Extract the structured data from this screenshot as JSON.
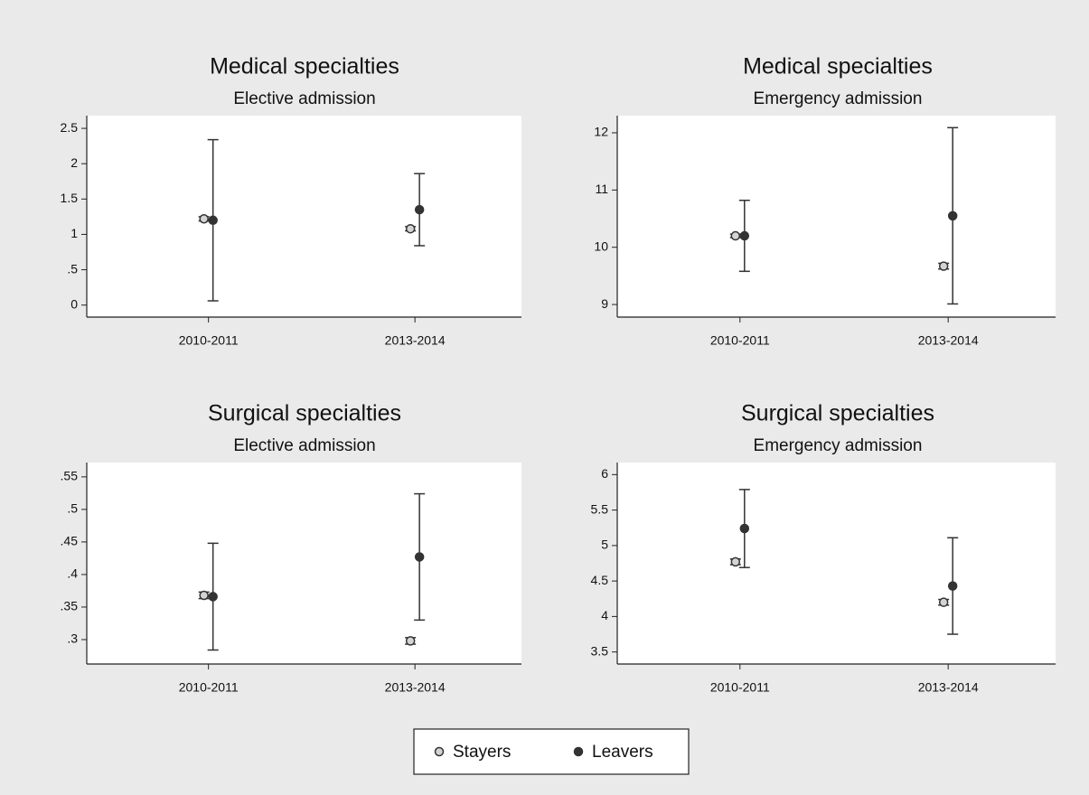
{
  "chart_data": [
    {
      "type": "dot",
      "title": "Medical specialties",
      "subtitle": "Elective admission",
      "categories": [
        "2010-2011",
        "2013-2014"
      ],
      "ylim": [
        -0.17,
        2.68
      ],
      "yticks": [
        0,
        {
          "value": 0.5,
          "label": ".5"
        },
        1,
        1.5,
        2,
        2.5
      ],
      "series": [
        {
          "name": "Stayers",
          "color": "#d4d4d4",
          "values": [
            1.22,
            1.08
          ],
          "errors": [
            0.03,
            0.03
          ]
        },
        {
          "name": "Leavers",
          "color": "#333333",
          "values": [
            1.2,
            1.35
          ],
          "errors": [
            1.14,
            0.51
          ]
        }
      ]
    },
    {
      "type": "dot",
      "title": "Medical specialties",
      "subtitle": "Emergency admission",
      "categories": [
        "2010-2011",
        "2013-2014"
      ],
      "ylim": [
        8.78,
        12.3
      ],
      "yticks": [
        9,
        10,
        11,
        12
      ],
      "series": [
        {
          "name": "Stayers",
          "color": "#d4d4d4",
          "values": [
            10.2,
            9.67
          ],
          "errors": [
            0.03,
            0.05
          ]
        },
        {
          "name": "Leavers",
          "color": "#333333",
          "values": [
            10.2,
            10.55
          ],
          "errors": [
            0.62,
            1.54
          ]
        }
      ]
    },
    {
      "type": "dot",
      "title": "Surgical specialties",
      "subtitle": "Elective admission",
      "categories": [
        "2010-2011",
        "2013-2014"
      ],
      "ylim": [
        0.2625,
        0.572
      ],
      "yticks": [
        {
          "value": 0.3,
          "label": ".3"
        },
        {
          "value": 0.35,
          "label": ".35"
        },
        {
          "value": 0.4,
          "label": ".4"
        },
        {
          "value": 0.45,
          "label": ".45"
        },
        {
          "value": 0.5,
          "label": ".5"
        },
        {
          "value": 0.55,
          "label": ".55"
        }
      ],
      "series": [
        {
          "name": "Stayers",
          "color": "#d4d4d4",
          "values": [
            0.368,
            0.298
          ],
          "errors": [
            0.005,
            0.005
          ]
        },
        {
          "name": "Leavers",
          "color": "#333333",
          "values": [
            0.366,
            0.427
          ],
          "errors": [
            0.082,
            0.097
          ]
        }
      ]
    },
    {
      "type": "dot",
      "title": "Surgical specialties",
      "subtitle": "Emergency admission",
      "categories": [
        "2010-2011",
        "2013-2014"
      ],
      "ylim": [
        3.33,
        6.17
      ],
      "yticks": [
        3.5,
        4,
        4.5,
        5,
        5.5,
        6
      ],
      "series": [
        {
          "name": "Stayers",
          "color": "#d4d4d4",
          "values": [
            4.77,
            4.2
          ],
          "errors": [
            0.04,
            0.04
          ]
        },
        {
          "name": "Leavers",
          "color": "#333333",
          "values": [
            5.24,
            4.43
          ],
          "errors": [
            0.55,
            0.68
          ]
        }
      ]
    }
  ]
}
